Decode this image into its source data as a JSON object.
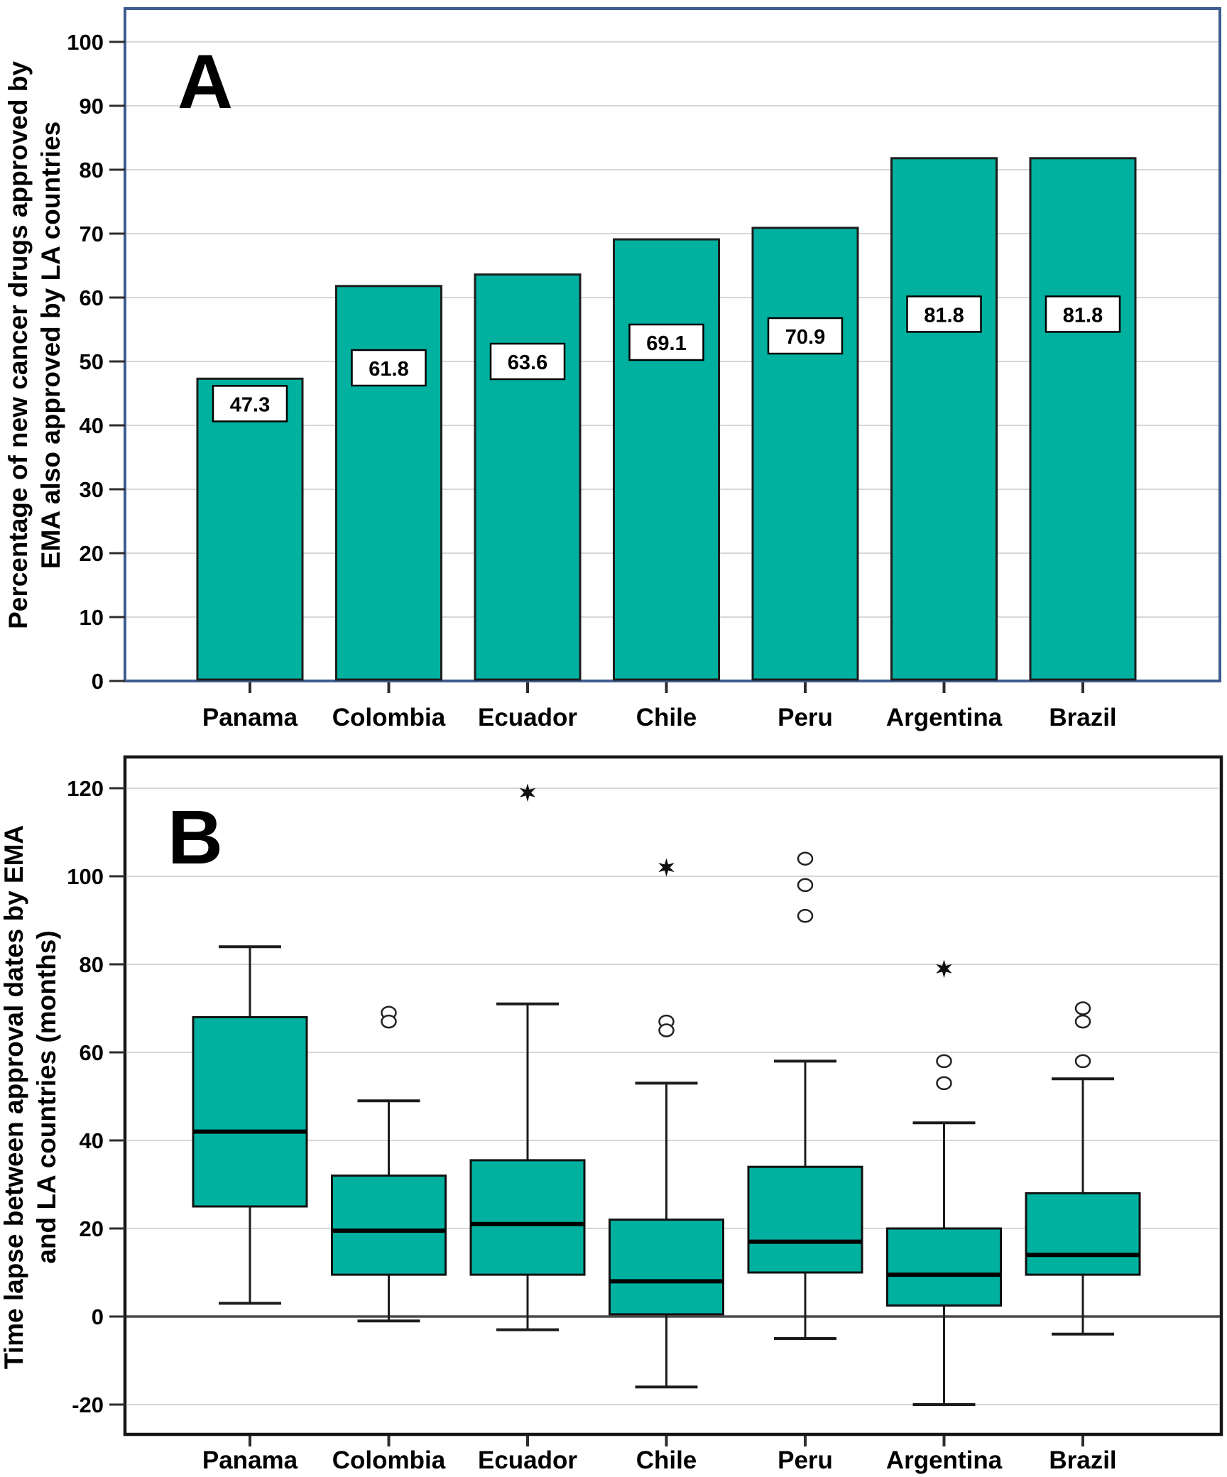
{
  "figure_title": "",
  "colors": {
    "bar_fill": "#00B1A0",
    "bar_stroke": "#1d1d1d",
    "panel_a_border": "#3E5C8F",
    "panel_b_border": "#161616",
    "gridline": "#d7d7d7",
    "zero_line": "#4a4a4a",
    "tick_color": "#2d2d2d",
    "text_color": "#000000",
    "label_box_bg": "#ffffff"
  },
  "chart_data": [
    {
      "type": "bar",
      "panel_label": "A",
      "title": "",
      "xlabel": "",
      "ylabel_line1": "Percentage of new cancer drugs approved by",
      "ylabel_line2": "EMA also approved by LA countries",
      "categories": [
        "Panama",
        "Colombia",
        "Ecuador",
        "Chile",
        "Peru",
        "Argentina",
        "Brazil"
      ],
      "values": [
        47.3,
        61.8,
        63.6,
        69.1,
        70.9,
        81.8,
        81.8
      ],
      "bar_labels": [
        "47.3",
        "61.8",
        "63.6",
        "69.1",
        "70.9",
        "81.8",
        "81.8"
      ],
      "yticks": [
        0,
        10,
        20,
        30,
        40,
        50,
        60,
        70,
        80,
        90,
        100
      ],
      "ylim": [
        0,
        105
      ],
      "grid": true,
      "legend": "none"
    },
    {
      "type": "box",
      "panel_label": "B",
      "title": "",
      "xlabel": "",
      "ylabel_line1": "Time lapse between approval dates by EMA",
      "ylabel_line2": "and LA countries (months)",
      "categories": [
        "Panama",
        "Colombia",
        "Ecuador",
        "Chile",
        "Peru",
        "Argentina",
        "Brazil"
      ],
      "yticks": [
        -20,
        0,
        20,
        40,
        60,
        80,
        100,
        120
      ],
      "ylim": [
        -27,
        127
      ],
      "grid": true,
      "legend": "none",
      "boxes": [
        {
          "category": "Panama",
          "whisker_low": 3,
          "q1": 25,
          "median": 42,
          "q3": 68,
          "whisker_high": 84,
          "circle_outliers": [],
          "star_outliers": []
        },
        {
          "category": "Colombia",
          "whisker_low": -1,
          "q1": 9.5,
          "median": 19.5,
          "q3": 32,
          "whisker_high": 49,
          "circle_outliers": [
            69,
            67
          ],
          "star_outliers": []
        },
        {
          "category": "Ecuador",
          "whisker_low": -3,
          "q1": 9.5,
          "median": 21,
          "q3": 35.5,
          "whisker_high": 71,
          "circle_outliers": [],
          "star_outliers": [
            119
          ]
        },
        {
          "category": "Chile",
          "whisker_low": -16,
          "q1": 0.5,
          "median": 8,
          "q3": 22,
          "whisker_high": 53,
          "circle_outliers": [
            67,
            65
          ],
          "star_outliers": [
            102
          ]
        },
        {
          "category": "Peru",
          "whisker_low": -5,
          "q1": 10,
          "median": 17,
          "q3": 34,
          "whisker_high": 58,
          "circle_outliers": [
            104,
            98,
            91
          ],
          "star_outliers": []
        },
        {
          "category": "Argentina",
          "whisker_low": -20,
          "q1": 2.5,
          "median": 9.5,
          "q3": 20,
          "whisker_high": 44,
          "circle_outliers": [
            58,
            53
          ],
          "star_outliers": [
            79
          ]
        },
        {
          "category": "Brazil",
          "whisker_low": -4,
          "q1": 9.5,
          "median": 14,
          "q3": 28,
          "whisker_high": 54,
          "circle_outliers": [
            70,
            67,
            58
          ],
          "star_outliers": []
        }
      ]
    }
  ]
}
